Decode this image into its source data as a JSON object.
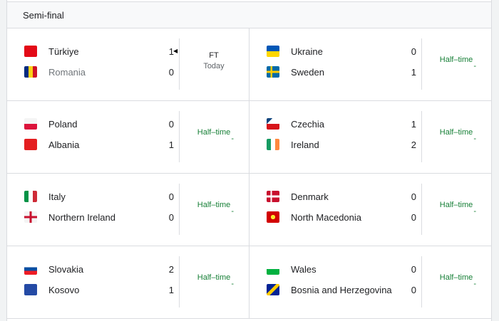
{
  "section_title": "Semi-final",
  "matches": [
    {
      "home": {
        "name": "Türkiye",
        "score": "1",
        "flag": "turkey-flag-icon"
      },
      "away": {
        "name": "Romania",
        "score": "0",
        "flag": "romania-flag-icon"
      },
      "status": "FT",
      "status_sub": "Today",
      "winner": "home"
    },
    {
      "home": {
        "name": "Ukraine",
        "score": "0",
        "flag": "ukraine-flag-icon"
      },
      "away": {
        "name": "Sweden",
        "score": "1",
        "flag": "sweden-flag-icon"
      },
      "status": "Half–time",
      "status_sub": "-"
    },
    {
      "home": {
        "name": "Poland",
        "score": "0",
        "flag": "poland-flag-icon"
      },
      "away": {
        "name": "Albania",
        "score": "1",
        "flag": "albania-flag-icon"
      },
      "status": "Half–time",
      "status_sub": "-"
    },
    {
      "home": {
        "name": "Czechia",
        "score": "1",
        "flag": "czechia-flag-icon"
      },
      "away": {
        "name": "Ireland",
        "score": "2",
        "flag": "ireland-flag-icon"
      },
      "status": "Half–time",
      "status_sub": "-"
    },
    {
      "home": {
        "name": "Italy",
        "score": "0",
        "flag": "italy-flag-icon"
      },
      "away": {
        "name": "Northern Ireland",
        "score": "0",
        "flag": "northern-ireland-flag-icon"
      },
      "status": "Half–time",
      "status_sub": "-"
    },
    {
      "home": {
        "name": "Denmark",
        "score": "0",
        "flag": "denmark-flag-icon"
      },
      "away": {
        "name": "North Macedonia",
        "score": "0",
        "flag": "north-macedonia-flag-icon"
      },
      "status": "Half–time",
      "status_sub": "-"
    },
    {
      "home": {
        "name": "Slovakia",
        "score": "2",
        "flag": "slovakia-flag-icon"
      },
      "away": {
        "name": "Kosovo",
        "score": "1",
        "flag": "kosovo-flag-icon"
      },
      "status": "Half–time",
      "status_sub": "-"
    },
    {
      "home": {
        "name": "Wales",
        "score": "0",
        "flag": "wales-flag-icon"
      },
      "away": {
        "name": "Bosnia and Herzegovina",
        "score": "0",
        "flag": "bosnia-flag-icon"
      },
      "status": "Half–time",
      "status_sub": "-"
    }
  ],
  "colors": {
    "live_status": "#188038"
  }
}
